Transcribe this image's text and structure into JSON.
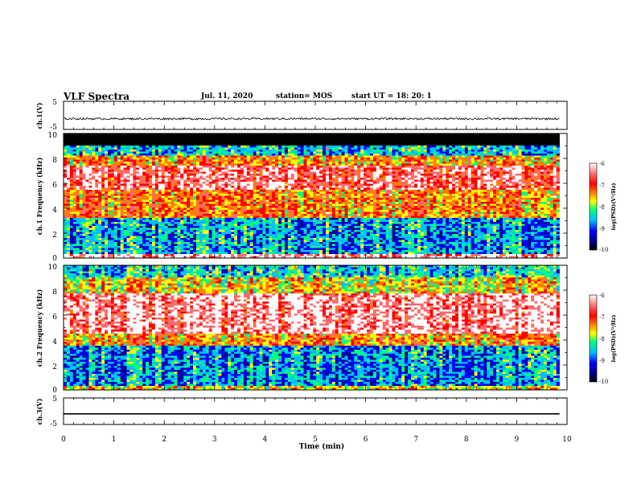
{
  "header": {
    "title": "VLF Spectra",
    "date": "Jul. 11, 2020",
    "station": "station= MOS",
    "start_ut": "start UT =  18: 20: 1"
  },
  "chart_data": [
    {
      "type": "line",
      "panel": "ch1_waveform",
      "ylabel": "ch.1(V)",
      "ylim": [
        -5,
        5
      ],
      "yticks": [
        "5",
        "-5"
      ],
      "xlim": [
        0,
        10
      ],
      "description_values": {
        "mean_level": -1.2,
        "amplitude": 0.35
      }
    },
    {
      "type": "heatmap",
      "panel": "ch1_spectrogram",
      "ylabel": "ch.1 Frequency (kHz)",
      "ylim": [
        0,
        10
      ],
      "yticks": [
        "0",
        "2",
        "4",
        "6",
        "8",
        "10"
      ],
      "xlim": [
        0,
        9.85
      ],
      "colorbar": {
        "label": "log(PSD)(V²/Hz)",
        "range": [
          -10,
          -6
        ],
        "ticks": [
          "-6",
          "-7",
          "-8",
          "-9",
          "-10"
        ]
      },
      "bands": [
        {
          "from_khz": 0,
          "to_khz": 0.35,
          "level": -6.4
        },
        {
          "from_khz": 0.35,
          "to_khz": 3.2,
          "level": -8.9
        },
        {
          "from_khz": 3.2,
          "to_khz": 5.5,
          "level": -7.5
        },
        {
          "from_khz": 5.5,
          "to_khz": 7.5,
          "level": -6.7
        },
        {
          "from_khz": 7.5,
          "to_khz": 8.3,
          "level": -7.6
        },
        {
          "from_khz": 8.3,
          "to_khz": 9.0,
          "level": -8.8
        },
        {
          "from_khz": 9.0,
          "to_khz": 10,
          "level": -11
        }
      ]
    },
    {
      "type": "heatmap",
      "panel": "ch2_spectrogram",
      "ylabel": "ch.2 Frequency (kHz)",
      "ylim": [
        0,
        10
      ],
      "yticks": [
        "0",
        "2",
        "4",
        "6",
        "8",
        "10"
      ],
      "xlim": [
        0,
        9.85
      ],
      "colorbar": {
        "label": "log(PSD)(V²/Hz)",
        "range": [
          -10,
          -6
        ],
        "ticks": [
          "-6",
          "-7",
          "-8",
          "-9",
          "-10"
        ]
      },
      "bands": [
        {
          "from_khz": 0,
          "to_khz": 0.4,
          "level": -7.9
        },
        {
          "from_khz": 0.4,
          "to_khz": 3.5,
          "level": -9.0
        },
        {
          "from_khz": 3.5,
          "to_khz": 4.5,
          "level": -7.6
        },
        {
          "from_khz": 4.5,
          "to_khz": 7.8,
          "level": -6.5
        },
        {
          "from_khz": 7.8,
          "to_khz": 9.0,
          "level": -7.9
        },
        {
          "from_khz": 9.0,
          "to_khz": 10,
          "level": -8.7
        }
      ]
    },
    {
      "type": "line",
      "panel": "ch3_waveform",
      "ylabel": "ch.3(V)",
      "ylim": [
        -5,
        5
      ],
      "yticks": [
        "5",
        "-5"
      ],
      "xlabel": "Time (min)",
      "xlim": [
        0,
        10
      ],
      "xticks": [
        "0",
        "1",
        "2",
        "3",
        "4",
        "5",
        "6",
        "7",
        "8",
        "9",
        "10"
      ],
      "description_values": {
        "mean_level": -1.0,
        "amplitude": 0.0
      }
    }
  ],
  "colors": {
    "scale": [
      "#000000",
      "#00008b",
      "#0000ff",
      "#00bfff",
      "#00ff7f",
      "#ffff00",
      "#ff7f00",
      "#ff0000",
      "#ff6a6a",
      "#ffffff"
    ]
  }
}
